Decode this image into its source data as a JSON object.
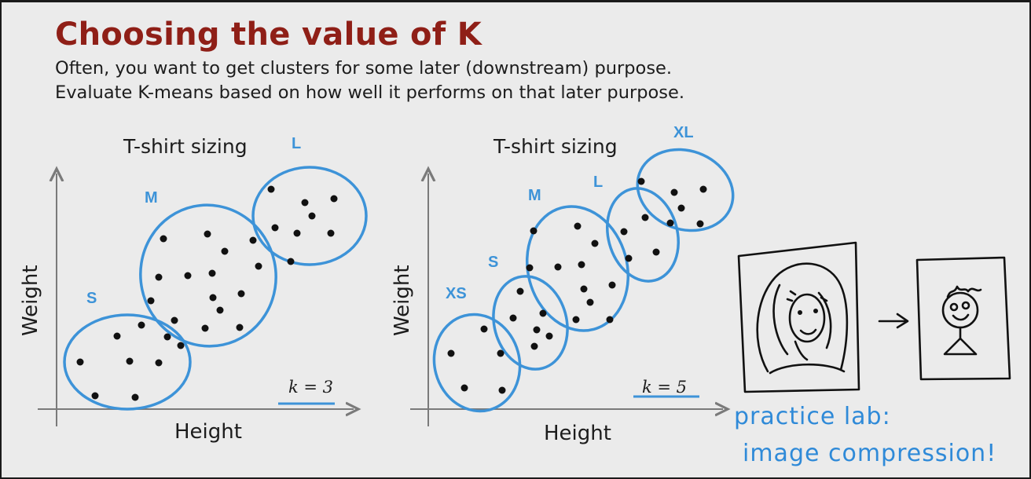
{
  "slide": {
    "title": "Choosing the value of K",
    "subtitle_lines": [
      "Often, you want to get clusters for some later (downstream) purpose.",
      "Evaluate K-means based on how well it performs on that later purpose."
    ],
    "colors": {
      "title": "#8f1f17",
      "cluster": "#3d93d8",
      "handwriting": "#2f8ad8"
    }
  },
  "plots": [
    {
      "title": "T-shirt sizing",
      "xlabel": "Height",
      "ylabel": "Weight",
      "k_label": "k = 3",
      "clusters": [
        "S",
        "M",
        "L"
      ]
    },
    {
      "title": "T-shirt sizing",
      "xlabel": "Height",
      "ylabel": "Weight",
      "k_label": "k = 5",
      "clusters": [
        "XS",
        "S",
        "M",
        "L",
        "XL"
      ]
    }
  ],
  "sketch": {
    "icons": [
      "portrait-drawing-icon",
      "arrow-right-icon",
      "stick-figure-icon"
    ]
  },
  "handwriting": {
    "line1": "practice lab:",
    "line2": "image compression!"
  }
}
